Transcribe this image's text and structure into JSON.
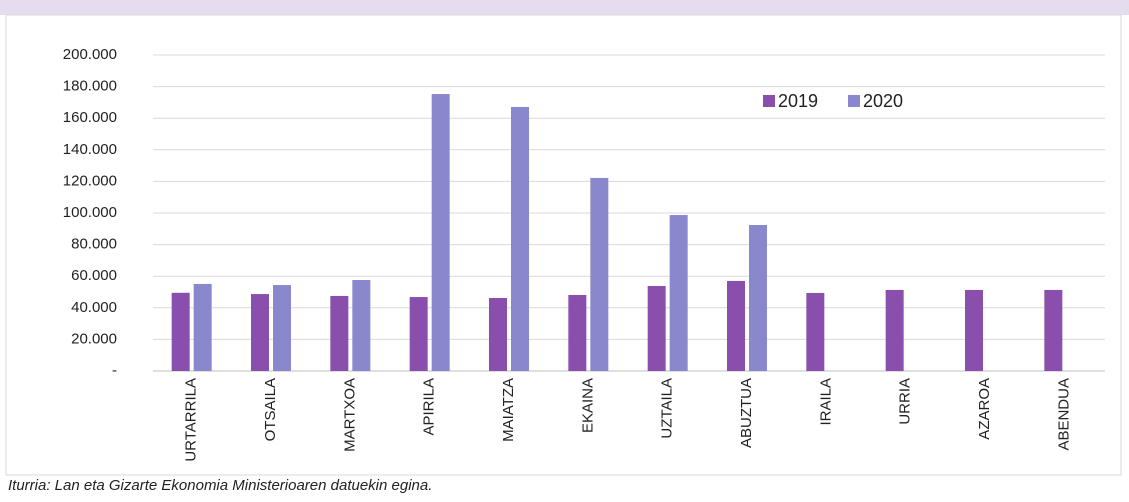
{
  "chart_data": {
    "type": "bar",
    "categories": [
      "URTARRILA",
      "OTSAILA",
      "MARTXOA",
      "APIRILA",
      "MAIATZA",
      "EKAINA",
      "UZTAILA",
      "ABUZTUA",
      "IRAILA",
      "URRIA",
      "AZAROA",
      "ABENDUA"
    ],
    "series": [
      {
        "name": "2019",
        "color": "#8a4fad",
        "values": [
          49500,
          48700,
          47500,
          46800,
          46200,
          48100,
          53800,
          57000,
          49400,
          51300,
          51300,
          51300
        ]
      },
      {
        "name": "2020",
        "color": "#8a88cc",
        "values": [
          55100,
          54400,
          57600,
          175300,
          167100,
          122200,
          98700,
          92400,
          null,
          null,
          null,
          null
        ]
      }
    ],
    "ylim": [
      0,
      200000
    ],
    "yticks": [
      {
        "value": 0,
        "label": "-"
      },
      {
        "value": 20000,
        "label": "20.000"
      },
      {
        "value": 40000,
        "label": "40.000"
      },
      {
        "value": 60000,
        "label": "60.000"
      },
      {
        "value": 80000,
        "label": "80.000"
      },
      {
        "value": 100000,
        "label": "100.000"
      },
      {
        "value": 120000,
        "label": "120.000"
      },
      {
        "value": 140000,
        "label": "140.000"
      },
      {
        "value": 160000,
        "label": "160.000"
      },
      {
        "value": 180000,
        "label": "180.000"
      },
      {
        "value": 200000,
        "label": "200.000"
      }
    ],
    "grid": true,
    "legend": "top-right",
    "source": "Iturria: Lan eta Gizarte Ekonomia Ministerioaren datuekin egina."
  }
}
